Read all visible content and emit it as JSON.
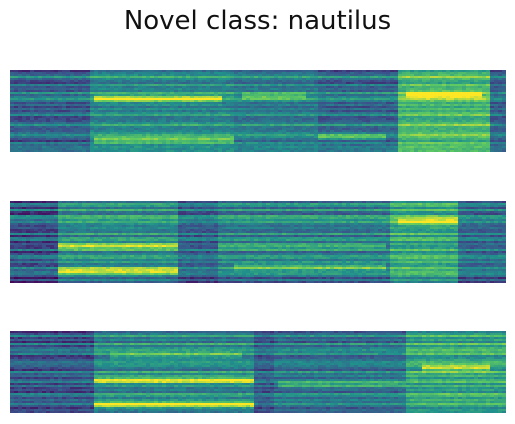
{
  "figure": {
    "title": "Novel class: nautilus",
    "colormap": "viridis",
    "colors": {
      "low": "#440154",
      "mid_low": "#3b528b",
      "mid": "#21918c",
      "mid_high": "#5ec962",
      "high": "#fde725"
    }
  },
  "panels": [
    {
      "name": "spectrogram-1",
      "segments": [
        {
          "start": 0.0,
          "end": 0.16,
          "level": 0.35,
          "texture": 0.25
        },
        {
          "start": 0.16,
          "end": 0.45,
          "level": 0.5,
          "texture": 0.2
        },
        {
          "start": 0.45,
          "end": 0.62,
          "level": 0.45,
          "texture": 0.2
        },
        {
          "start": 0.62,
          "end": 0.78,
          "level": 0.38,
          "texture": 0.25
        },
        {
          "start": 0.78,
          "end": 0.97,
          "level": 0.7,
          "texture": 0.2
        },
        {
          "start": 0.97,
          "end": 1.0,
          "level": 0.35,
          "texture": 0.2
        }
      ],
      "bands": [
        {
          "y": 0.35,
          "from": 0.17,
          "to": 0.43,
          "strength": 0.45
        },
        {
          "y": 0.85,
          "from": 0.17,
          "to": 0.45,
          "strength": 0.4
        },
        {
          "y": 0.82,
          "from": 0.62,
          "to": 0.76,
          "strength": 0.35
        },
        {
          "y": 0.32,
          "from": 0.47,
          "to": 0.6,
          "strength": 0.3
        },
        {
          "y": 0.3,
          "from": 0.8,
          "to": 0.95,
          "strength": 0.45
        }
      ]
    },
    {
      "name": "spectrogram-2",
      "segments": [
        {
          "start": 0.0,
          "end": 0.1,
          "level": 0.3,
          "texture": 0.25
        },
        {
          "start": 0.1,
          "end": 0.34,
          "level": 0.5,
          "texture": 0.2
        },
        {
          "start": 0.34,
          "end": 0.42,
          "level": 0.35,
          "texture": 0.2
        },
        {
          "start": 0.42,
          "end": 0.77,
          "level": 0.45,
          "texture": 0.22
        },
        {
          "start": 0.77,
          "end": 0.9,
          "level": 0.62,
          "texture": 0.2
        },
        {
          "start": 0.9,
          "end": 1.0,
          "level": 0.38,
          "texture": 0.2
        }
      ],
      "bands": [
        {
          "y": 0.55,
          "from": 0.1,
          "to": 0.34,
          "strength": 0.55
        },
        {
          "y": 0.85,
          "from": 0.1,
          "to": 0.34,
          "strength": 0.5
        },
        {
          "y": 0.55,
          "from": 0.42,
          "to": 0.76,
          "strength": 0.3
        },
        {
          "y": 0.8,
          "from": 0.45,
          "to": 0.76,
          "strength": 0.3
        },
        {
          "y": 0.25,
          "from": 0.78,
          "to": 0.9,
          "strength": 0.4
        }
      ]
    },
    {
      "name": "spectrogram-3",
      "segments": [
        {
          "start": 0.0,
          "end": 0.17,
          "level": 0.3,
          "texture": 0.25
        },
        {
          "start": 0.17,
          "end": 0.49,
          "level": 0.48,
          "texture": 0.22
        },
        {
          "start": 0.49,
          "end": 0.53,
          "level": 0.32,
          "texture": 0.2
        },
        {
          "start": 0.53,
          "end": 0.8,
          "level": 0.4,
          "texture": 0.22
        },
        {
          "start": 0.8,
          "end": 1.0,
          "level": 0.6,
          "texture": 0.22
        }
      ],
      "bands": [
        {
          "y": 0.6,
          "from": 0.17,
          "to": 0.49,
          "strength": 0.5
        },
        {
          "y": 0.9,
          "from": 0.17,
          "to": 0.49,
          "strength": 0.55
        },
        {
          "y": 0.3,
          "from": 0.2,
          "to": 0.47,
          "strength": 0.25
        },
        {
          "y": 0.65,
          "from": 0.54,
          "to": 0.8,
          "strength": 0.3
        },
        {
          "y": 0.45,
          "from": 0.83,
          "to": 0.97,
          "strength": 0.4
        }
      ]
    }
  ]
}
